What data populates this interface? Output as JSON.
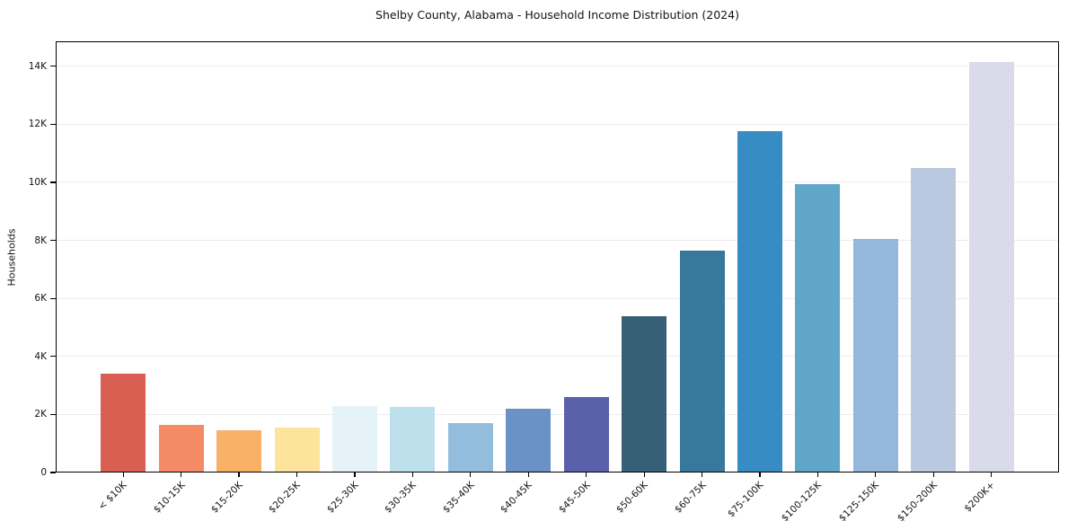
{
  "chart_data": {
    "type": "bar",
    "title": "Shelby County, Alabama - Household Income Distribution (2024)",
    "xlabel": "",
    "ylabel": "Households",
    "categories": [
      "< $10K",
      "$10-15K",
      "$15-20K",
      "$20-25K",
      "$25-30K",
      "$30-35K",
      "$35-40K",
      "$40-45K",
      "$45-50K",
      "$50-60K",
      "$60-75K",
      "$75-100K",
      "$100-125K",
      "$125-150K",
      "$150-200K",
      "$200K+"
    ],
    "values": [
      3400,
      1650,
      1450,
      1550,
      2300,
      2250,
      1700,
      2200,
      2600,
      5400,
      7650,
      11750,
      9950,
      8050,
      10500,
      14150
    ],
    "bar_colors": [
      "#d95f52",
      "#f58a66",
      "#f9b168",
      "#fce49d",
      "#e5f2f8",
      "#bde0ec",
      "#92bddd",
      "#6b92c6",
      "#5b60ab",
      "#375f75",
      "#38789c",
      "#368cc3",
      "#5fa6c8",
      "#93b8db",
      "#bac8e0",
      "#d9dbea"
    ],
    "ytick_values": [
      0,
      2000,
      4000,
      6000,
      8000,
      10000,
      12000,
      14000
    ],
    "ytick_labels": [
      "0",
      "2K",
      "4K",
      "6K",
      "8K",
      "10K",
      "12K",
      "14K"
    ],
    "ylim": [
      0,
      14860
    ],
    "grid": "horizontal",
    "legend": "none",
    "colors": {
      "grid": "#ececec",
      "spine": "#000000",
      "background": "#ffffff",
      "text": "#111111"
    }
  }
}
